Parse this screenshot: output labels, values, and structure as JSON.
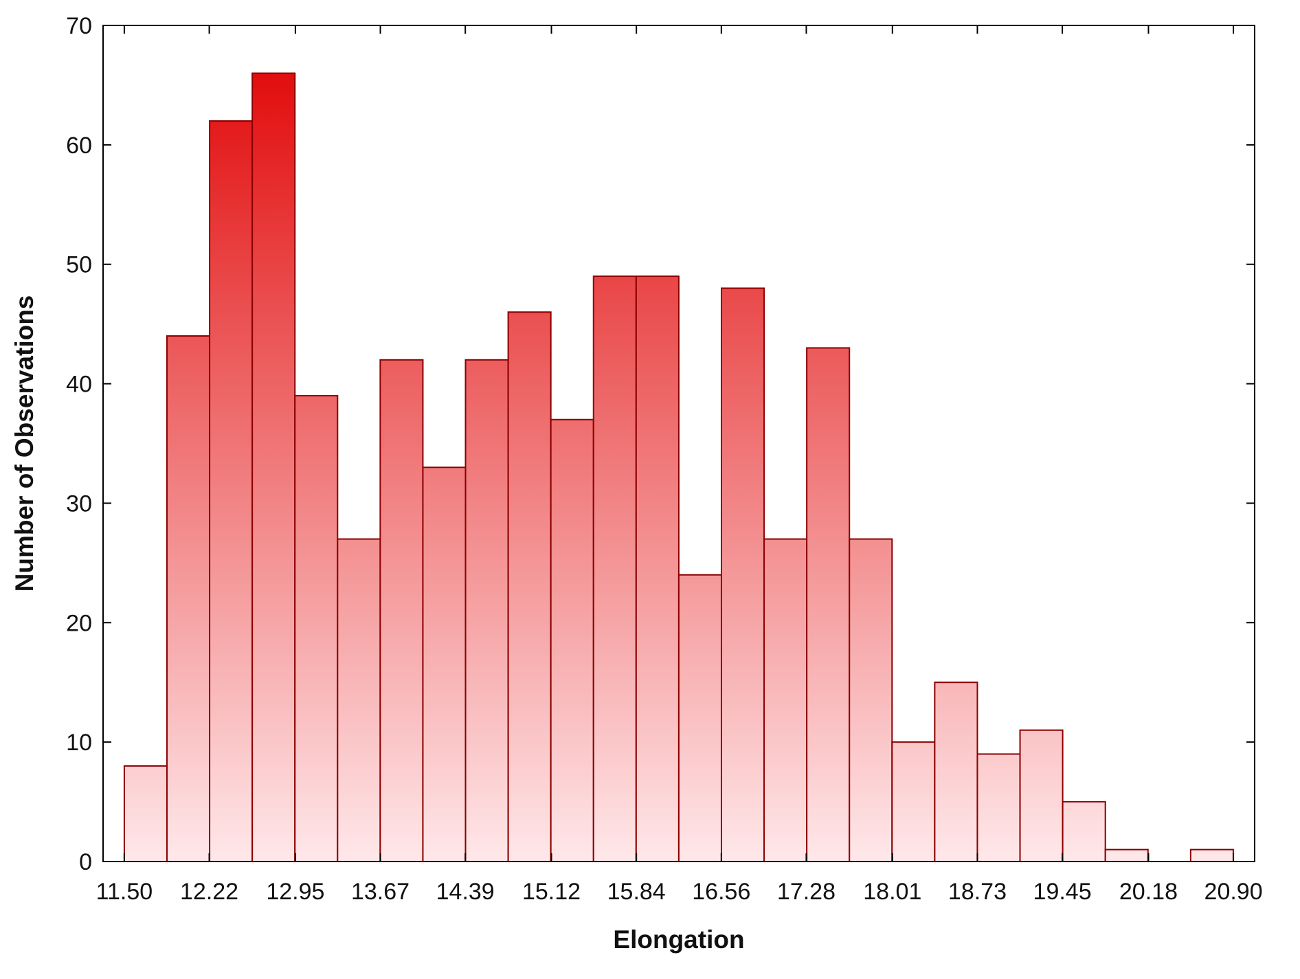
{
  "chart_data": {
    "type": "bar",
    "subtype": "histogram",
    "title": "",
    "xlabel": "Elongation",
    "ylabel": "Number of Observations",
    "xlim": [
      11.32,
      21.08
    ],
    "ylim": [
      0,
      70
    ],
    "x_tick_labels": [
      "11.50",
      "12.22",
      "12.95",
      "13.67",
      "14.39",
      "15.12",
      "15.84",
      "16.56",
      "17.28",
      "18.01",
      "18.73",
      "19.45",
      "20.18",
      "20.90"
    ],
    "y_ticks": [
      0,
      10,
      20,
      30,
      40,
      50,
      60,
      70
    ],
    "bin_start": 11.5,
    "bin_width": 0.3615,
    "values": [
      8,
      44,
      62,
      66,
      39,
      27,
      42,
      33,
      42,
      46,
      37,
      49,
      49,
      24,
      48,
      27,
      43,
      27,
      10,
      15,
      9,
      11,
      5,
      1,
      0,
      1
    ],
    "grid": false,
    "legend": "none",
    "colors": {
      "bar_fill_top": "#e00000",
      "bar_fill_bottom": "#ffe8ea",
      "bar_stroke": "#8b0000",
      "axis": "#000000"
    }
  }
}
